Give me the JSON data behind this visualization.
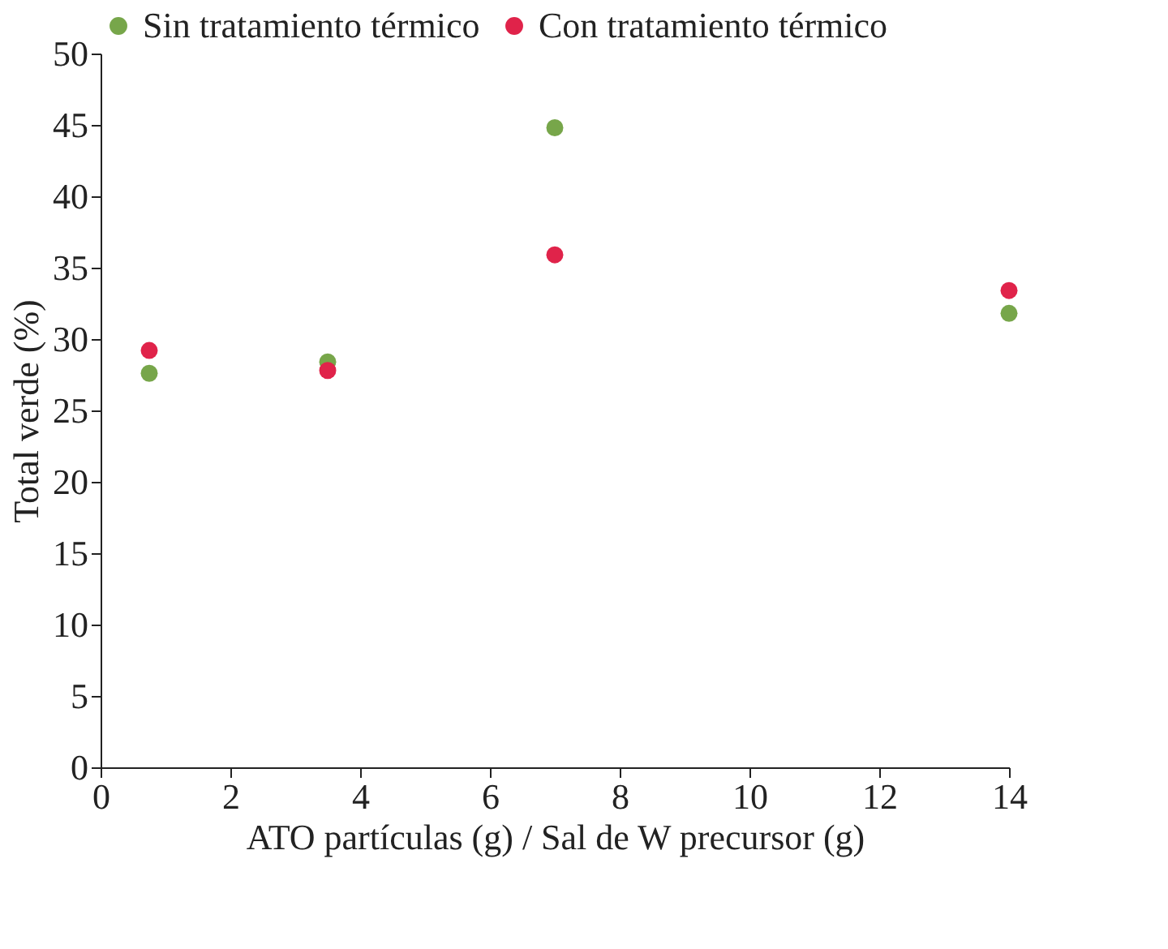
{
  "chart_data": {
    "type": "scatter",
    "xlabel": "ATO partículas (g) / Sal de W  precursor (g)",
    "ylabel": "Total verde (%)",
    "x": [
      0.75,
      3.5,
      7.0,
      14.0
    ],
    "series": [
      {
        "name": "Sin tratamiento térmico",
        "color": "#77a64a",
        "values": [
          27.6,
          28.4,
          44.8,
          31.8
        ]
      },
      {
        "name": "Con tratamiento térmico",
        "color": "#e0234a",
        "values": [
          29.2,
          27.8,
          35.9,
          33.4
        ]
      }
    ],
    "xlim": [
      0,
      14
    ],
    "xticks": [
      0,
      2,
      4,
      6,
      8,
      10,
      12,
      14
    ],
    "ylim": [
      0,
      50
    ],
    "yticks": [
      0,
      5,
      10,
      15,
      20,
      25,
      30,
      35,
      40,
      45,
      50
    ],
    "grid": false,
    "legend": "top left",
    "marker": "circle"
  }
}
